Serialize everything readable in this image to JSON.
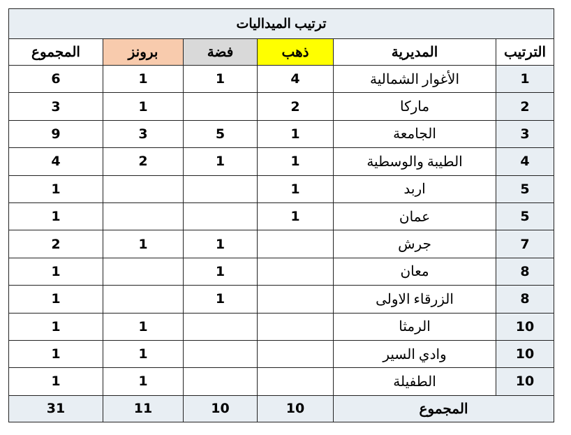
{
  "title": "ترتيب الميداليات",
  "headers": {
    "rank": "الترتيب",
    "district": "المديرية",
    "gold": "ذهب",
    "silver": "فضة",
    "bronze": "برونز",
    "total": "المجموع"
  },
  "colors": {
    "header_bg": "#e8eef3",
    "gold": "#ffff00",
    "silver": "#d9d9d9",
    "bronze": "#f8cbad"
  },
  "rows": [
    {
      "rank": "1",
      "district": "الأغوار الشمالية",
      "gold": "4",
      "silver": "1",
      "bronze": "1",
      "total": "6"
    },
    {
      "rank": "2",
      "district": "ماركا",
      "gold": "2",
      "silver": "",
      "bronze": "1",
      "total": "3"
    },
    {
      "rank": "3",
      "district": "الجامعة",
      "gold": "1",
      "silver": "5",
      "bronze": "3",
      "total": "9"
    },
    {
      "rank": "4",
      "district": "الطيبة والوسطية",
      "gold": "1",
      "silver": "1",
      "bronze": "2",
      "total": "4"
    },
    {
      "rank": "5",
      "district": "اربد",
      "gold": "1",
      "silver": "",
      "bronze": "",
      "total": "1"
    },
    {
      "rank": "5",
      "district": "عمان",
      "gold": "1",
      "silver": "",
      "bronze": "",
      "total": "1"
    },
    {
      "rank": "7",
      "district": "جرش",
      "gold": "",
      "silver": "1",
      "bronze": "1",
      "total": "2"
    },
    {
      "rank": "8",
      "district": "معان",
      "gold": "",
      "silver": "1",
      "bronze": "",
      "total": "1"
    },
    {
      "rank": "8",
      "district": "الزرقاء الاولى",
      "gold": "",
      "silver": "1",
      "bronze": "",
      "total": "1"
    },
    {
      "rank": "10",
      "district": "الرمثا",
      "gold": "",
      "silver": "",
      "bronze": "1",
      "total": "1"
    },
    {
      "rank": "10",
      "district": "وادي السير",
      "gold": "",
      "silver": "",
      "bronze": "1",
      "total": "1"
    },
    {
      "rank": "10",
      "district": "الطفيلة",
      "gold": "",
      "silver": "",
      "bronze": "1",
      "total": "1"
    }
  ],
  "totals": {
    "label": "المجموع",
    "gold": "10",
    "silver": "10",
    "bronze": "11",
    "total": "31"
  }
}
